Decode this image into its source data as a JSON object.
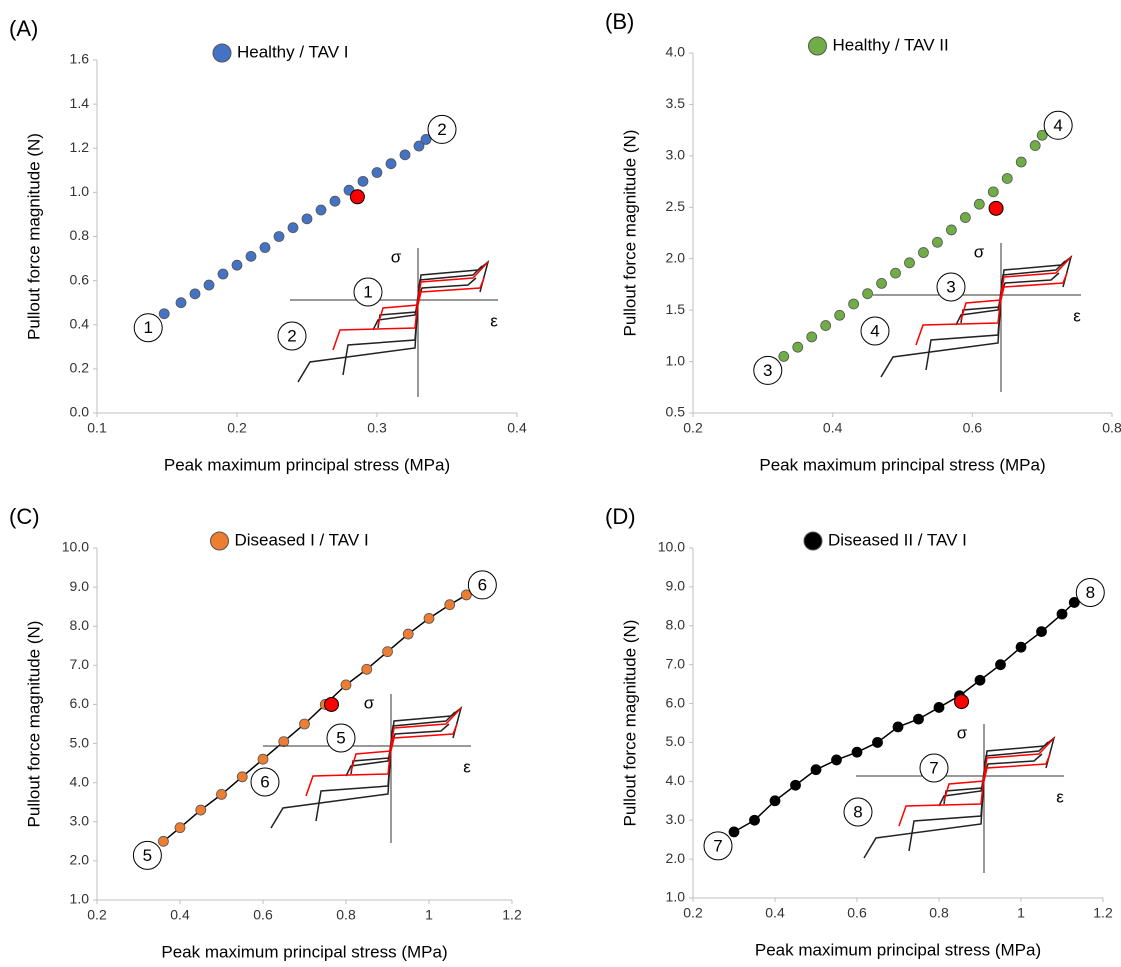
{
  "chart_data": [
    {
      "type": "scatter",
      "panel_label": "(A)",
      "xlabel": "Peak maximum principal stress (MPa)",
      "ylabel": "Pullout force magnitude (N)",
      "xlim": [
        0.1,
        0.4
      ],
      "xticks": [
        0.1,
        0.2,
        0.3,
        0.4
      ],
      "ylim": [
        0,
        1.6
      ],
      "yticks": [
        {
          "value": 0,
          "label": "0.0"
        },
        0.2,
        0.4,
        0.6,
        0.8,
        {
          "value": 1,
          "label": "1.0"
        },
        1.2,
        1.4,
        1.6
      ],
      "series": [
        {
          "name": "Healthy / TAV I",
          "color": "#4472c4",
          "x": [
            0.148,
            0.16,
            0.17,
            0.18,
            0.19,
            0.2,
            0.21,
            0.22,
            0.23,
            0.24,
            0.25,
            0.26,
            0.27,
            0.28,
            0.29,
            0.3,
            0.31,
            0.32,
            0.33,
            0.335
          ],
          "values": [
            0.45,
            0.5,
            0.54,
            0.58,
            0.63,
            0.67,
            0.71,
            0.75,
            0.8,
            0.84,
            0.88,
            0.92,
            0.96,
            1.01,
            1.05,
            1.09,
            1.13,
            1.17,
            1.21,
            1.24
          ]
        }
      ],
      "connect": false,
      "highlight": {
        "x": 0.286,
        "y": 0.98,
        "color": "#ff0000"
      },
      "annotations": [
        "1",
        "2"
      ],
      "inset": {
        "stress_symbol": "σ",
        "strain_symbol": "ε",
        "markers": [
          "1",
          "2"
        ]
      }
    },
    {
      "type": "scatter",
      "panel_label": "(B)",
      "xlabel": "Peak maximum principal stress (MPa)",
      "ylabel": "Pullout force magnitude (N)",
      "xlim": [
        0.2,
        0.8
      ],
      "xticks": [
        0.2,
        0.4,
        0.6,
        0.8
      ],
      "ylim": [
        0.5,
        4
      ],
      "yticks": [
        0.5,
        {
          "value": 1,
          "label": "1.0"
        },
        1.5,
        {
          "value": 2,
          "label": "2.0"
        },
        2.5,
        {
          "value": 3,
          "label": "3.0"
        },
        3.5,
        {
          "value": 4,
          "label": "4.0"
        }
      ],
      "series": [
        {
          "name": "Healthy / TAV II",
          "color": "#70ad47",
          "x": [
            0.33,
            0.35,
            0.37,
            0.39,
            0.41,
            0.43,
            0.45,
            0.47,
            0.49,
            0.51,
            0.53,
            0.55,
            0.57,
            0.59,
            0.61,
            0.63,
            0.65,
            0.67,
            0.69,
            0.7
          ],
          "values": [
            1.05,
            1.14,
            1.24,
            1.35,
            1.45,
            1.56,
            1.66,
            1.76,
            1.86,
            1.96,
            2.06,
            2.16,
            2.28,
            2.4,
            2.53,
            2.65,
            2.78,
            2.94,
            3.1,
            3.2
          ]
        }
      ],
      "connect": false,
      "highlight": {
        "x": 0.634,
        "y": 2.49,
        "color": "#ff0000"
      },
      "annotations": [
        "3",
        "4"
      ],
      "inset": {
        "stress_symbol": "σ",
        "strain_symbol": "ε",
        "markers": [
          "3",
          "4"
        ]
      }
    },
    {
      "type": "scatter",
      "panel_label": "(C)",
      "xlabel": "Peak maximum principal stress (MPa)",
      "ylabel": "Pullout force magnitude (N)",
      "xlim": [
        0.2,
        1.2
      ],
      "xticks": [
        0.2,
        0.4,
        0.6,
        0.8,
        1,
        1.2
      ],
      "ylim": [
        1,
        10
      ],
      "yticks": [
        {
          "value": 1,
          "label": "1.0"
        },
        {
          "value": 2,
          "label": "2.0"
        },
        {
          "value": 3,
          "label": "3.0"
        },
        {
          "value": 4,
          "label": "4.0"
        },
        {
          "value": 5,
          "label": "5.0"
        },
        {
          "value": 6,
          "label": "6.0"
        },
        {
          "value": 7,
          "label": "7.0"
        },
        {
          "value": 8,
          "label": "8.0"
        },
        {
          "value": 9,
          "label": "9.0"
        },
        {
          "value": 10,
          "label": "10.0"
        }
      ],
      "series": [
        {
          "name": "Diseased I / TAV I",
          "color": "#ed7d31",
          "x": [
            0.36,
            0.4,
            0.45,
            0.5,
            0.55,
            0.6,
            0.65,
            0.7,
            0.75,
            0.8,
            0.85,
            0.9,
            0.95,
            1.0,
            1.05,
            1.09
          ],
          "values": [
            2.5,
            2.85,
            3.3,
            3.7,
            4.15,
            4.6,
            5.05,
            5.5,
            6.0,
            6.5,
            6.9,
            7.35,
            7.8,
            8.2,
            8.55,
            8.8
          ]
        }
      ],
      "connect": true,
      "highlight": {
        "x": 0.765,
        "y": 6.0,
        "color": "#ff0000"
      },
      "annotations": [
        "5",
        "6"
      ],
      "inset": {
        "stress_symbol": "σ",
        "strain_symbol": "ε",
        "markers": [
          "5",
          "6"
        ]
      }
    },
    {
      "type": "scatter",
      "panel_label": "(D)",
      "xlabel": "Peak maximum principal stress (MPa)",
      "ylabel": "Pullout force magnitude (N)",
      "xlim": [
        0.2,
        1.2
      ],
      "xticks": [
        0.2,
        0.4,
        0.6,
        0.8,
        1,
        1.2
      ],
      "ylim": [
        1,
        10
      ],
      "yticks": [
        {
          "value": 1,
          "label": "1.0"
        },
        {
          "value": 2,
          "label": "2.0"
        },
        {
          "value": 3,
          "label": "3.0"
        },
        {
          "value": 4,
          "label": "4.0"
        },
        {
          "value": 5,
          "label": "5.0"
        },
        {
          "value": 6,
          "label": "6.0"
        },
        {
          "value": 7,
          "label": "7.0"
        },
        {
          "value": 8,
          "label": "8.0"
        },
        {
          "value": 9,
          "label": "9.0"
        },
        {
          "value": 10,
          "label": "10.0"
        }
      ],
      "series": [
        {
          "name": "Diseased II / TAV I",
          "color": "#000000",
          "x": [
            0.3,
            0.35,
            0.4,
            0.45,
            0.5,
            0.55,
            0.6,
            0.65,
            0.7,
            0.75,
            0.8,
            0.85,
            0.9,
            0.95,
            1.0,
            1.05,
            1.1,
            1.13
          ],
          "values": [
            2.7,
            3.0,
            3.5,
            3.9,
            4.3,
            4.55,
            4.75,
            5.0,
            5.4,
            5.6,
            5.9,
            6.2,
            6.6,
            7.0,
            7.45,
            7.85,
            8.3,
            8.6
          ]
        }
      ],
      "connect": true,
      "highlight": {
        "x": 0.855,
        "y": 6.05,
        "color": "#ff0000"
      },
      "annotations": [
        "7",
        "8"
      ],
      "inset": {
        "stress_symbol": "σ",
        "strain_symbol": "ε",
        "markers": [
          "7",
          "8"
        ]
      }
    }
  ]
}
